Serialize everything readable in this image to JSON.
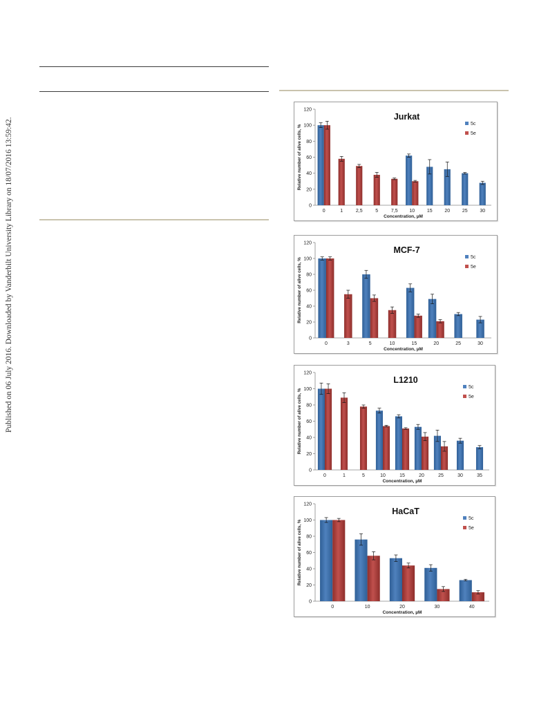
{
  "side_note": "Published on 06 July 2016. Downloaded by Vanderbilt University Library on 18/07/2016 13:59:42.",
  "colors": {
    "series_5c": "#4f81bd",
    "series_5e": "#c0504d"
  },
  "chart_data": [
    {
      "type": "bar",
      "title": "Jurkat",
      "xlabel": "Concentration, µM",
      "ylabel": "Relative number of alive cells, %",
      "ylim": [
        0,
        120
      ],
      "yticks": [
        0,
        20,
        40,
        60,
        80,
        100,
        120
      ],
      "legend_position": "top-right",
      "categories": [
        "0",
        "1",
        "2,5",
        "5",
        "7,5",
        "10",
        "15",
        "20",
        "25",
        "30"
      ],
      "series": [
        {
          "name": "5c",
          "values": [
            100,
            null,
            null,
            null,
            null,
            62,
            48,
            45,
            40,
            28
          ],
          "errors": [
            3,
            null,
            null,
            null,
            null,
            2,
            9,
            9,
            1,
            2
          ]
        },
        {
          "name": "5e",
          "values": [
            100,
            58,
            49,
            38,
            33,
            30,
            null,
            null,
            null,
            null
          ],
          "errors": [
            5,
            3,
            2,
            3,
            1,
            1,
            null,
            null,
            null,
            null
          ]
        }
      ]
    },
    {
      "type": "bar",
      "title": "MCF-7",
      "xlabel": "Concentration, µM",
      "ylabel": "Relative number of alive cells, %",
      "ylim": [
        0,
        120
      ],
      "yticks": [
        0,
        20,
        40,
        60,
        80,
        100,
        120
      ],
      "legend_position": "top-right",
      "categories": [
        "0",
        "3",
        "5",
        "10",
        "15",
        "20",
        "25",
        "30"
      ],
      "series": [
        {
          "name": "5c",
          "values": [
            100,
            null,
            80,
            null,
            63,
            49,
            30,
            23
          ],
          "errors": [
            2,
            null,
            5,
            null,
            5,
            6,
            2,
            4
          ]
        },
        {
          "name": "5e",
          "values": [
            100,
            55,
            50,
            35,
            28,
            21,
            null,
            null
          ],
          "errors": [
            2,
            5,
            4,
            4,
            2,
            2,
            null,
            null
          ]
        }
      ]
    },
    {
      "type": "bar",
      "title": "L1210",
      "xlabel": "Concentration, µM",
      "ylabel": "Relative number of alive cells, %",
      "ylim": [
        0,
        120
      ],
      "yticks": [
        0,
        20,
        40,
        60,
        80,
        100,
        120
      ],
      "legend_position": "top-right",
      "categories": [
        "0",
        "1",
        "5",
        "10",
        "15",
        "20",
        "25",
        "30",
        "35"
      ],
      "series": [
        {
          "name": "5c",
          "values": [
            100,
            null,
            null,
            73,
            66,
            53,
            42,
            36,
            28
          ],
          "errors": [
            7,
            null,
            null,
            3,
            2,
            3,
            7,
            3,
            2
          ]
        },
        {
          "name": "5e",
          "values": [
            100,
            89,
            78,
            54,
            51,
            41,
            29,
            null,
            null
          ],
          "errors": [
            6,
            6,
            2,
            1,
            1,
            5,
            6,
            null,
            null
          ]
        }
      ]
    },
    {
      "type": "bar",
      "title": "HaCaT",
      "xlabel": "Concentration, µM",
      "ylabel": "Relative number of alive cells, %",
      "ylim": [
        0,
        120
      ],
      "yticks": [
        0,
        20,
        40,
        60,
        80,
        100,
        120
      ],
      "legend_position": "top-right",
      "categories": [
        "0",
        "10",
        "20",
        "30",
        "40"
      ],
      "series": [
        {
          "name": "5c",
          "values": [
            100,
            76,
            53,
            41,
            26
          ],
          "errors": [
            3,
            7,
            4,
            4,
            1
          ]
        },
        {
          "name": "5e",
          "values": [
            100,
            56,
            44,
            15,
            11
          ],
          "errors": [
            2,
            5,
            3,
            3,
            2
          ]
        }
      ]
    }
  ]
}
